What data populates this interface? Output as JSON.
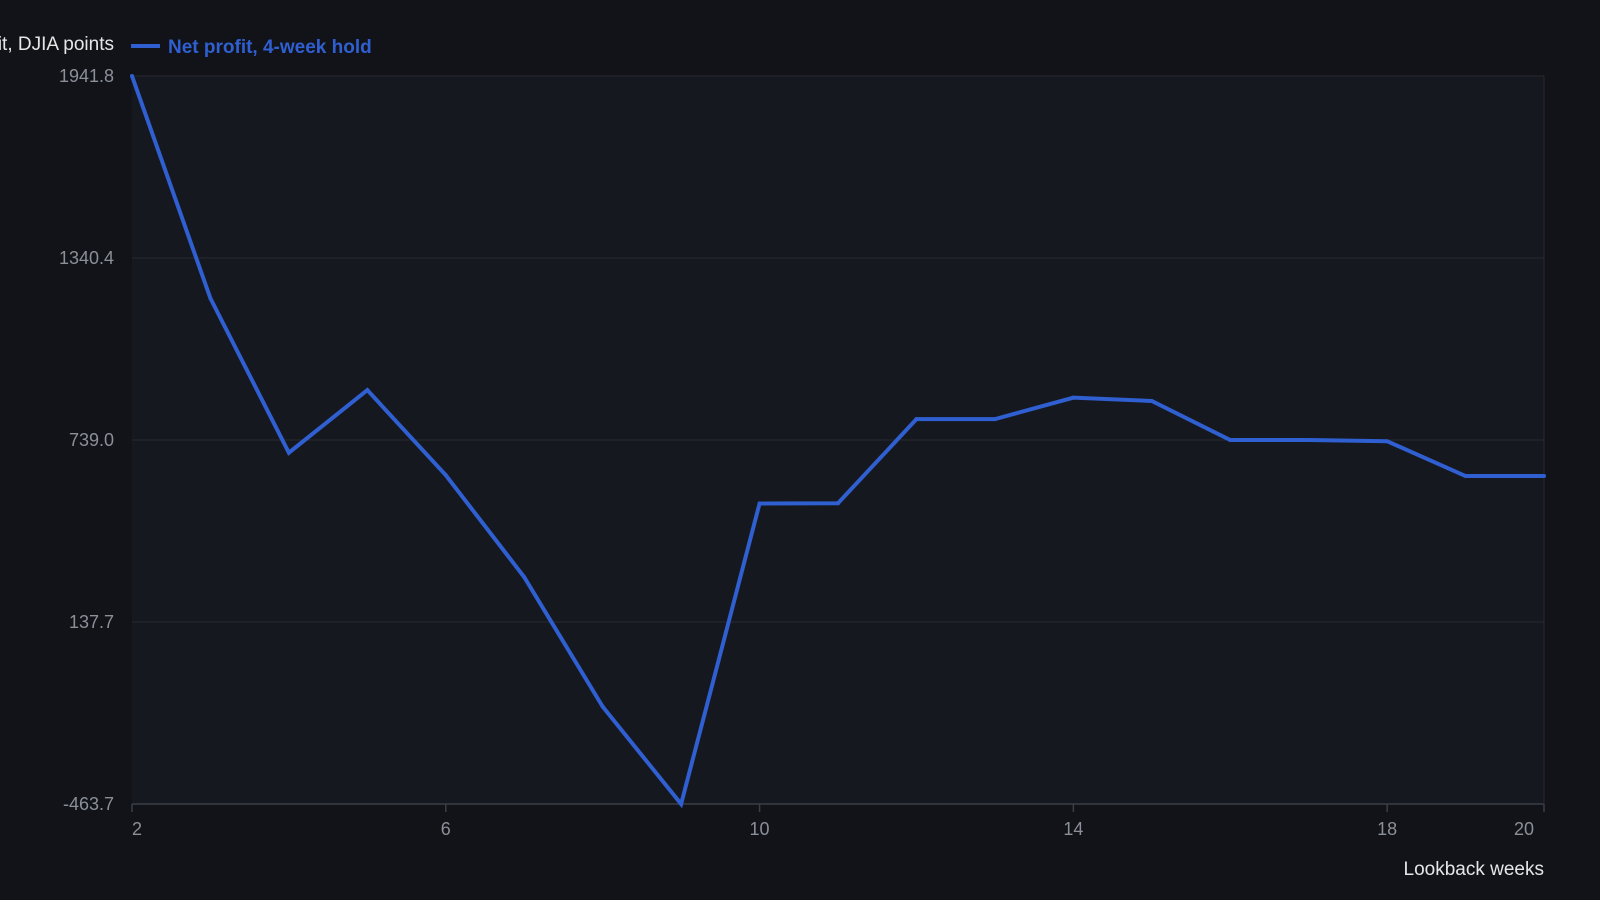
{
  "chart_data": {
    "type": "line",
    "title": "",
    "xlabel": "Lookback weeks",
    "ylabel": "Net profit, DJIA points",
    "x": [
      2,
      3,
      4,
      5,
      6,
      7,
      8,
      9,
      10,
      11,
      12,
      13,
      14,
      15,
      16,
      17,
      18,
      19,
      20
    ],
    "series": [
      {
        "name": "Net profit, 4-week hold",
        "color": "#2f5fd0",
        "values": [
          1941.8,
          1207.0,
          697.0,
          904.0,
          623.0,
          286.0,
          -142.0,
          -463.7,
          529.0,
          530.0,
          808.0,
          808.0,
          879.0,
          868.0,
          739.0,
          739.0,
          735.0,
          620.0,
          620.0
        ]
      }
    ],
    "xlim": [
      2,
      20
    ],
    "ylim": [
      -463.7,
      1941.8
    ],
    "x_ticks": [
      2,
      6,
      10,
      14,
      18,
      20
    ],
    "x_tick_labels": [
      "2",
      "6",
      "10",
      "14",
      "18",
      "20"
    ],
    "y_ticks": [
      -463.7,
      137.7,
      739.0,
      1340.4,
      1941.8
    ],
    "y_tick_labels": [
      "-463.7",
      "137.7",
      "739.0",
      "1340.4",
      "1941.8"
    ],
    "grid": true,
    "legend_position": "top-left",
    "colors": {
      "background": "#111318",
      "plot_background": "#15181e",
      "grid": "#262a31",
      "axis": "#3a3e46"
    }
  }
}
